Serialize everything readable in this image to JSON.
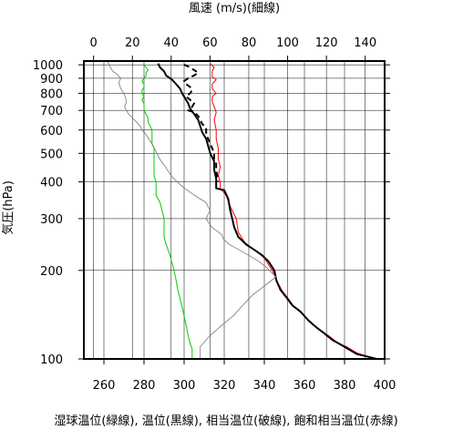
{
  "chart_data": {
    "type": "line",
    "top_axis": {
      "label": "風速 (m/s)(細線)",
      "range": [
        -5,
        150
      ],
      "ticks": [
        0,
        20,
        40,
        60,
        80,
        100,
        120,
        140
      ]
    },
    "bottom_axis": {
      "label": "湿球温位(緑線), 温位(黒線), 相当温位(破線), 飽和相当温位(赤線)",
      "range": [
        250,
        400
      ],
      "ticks": [
        260,
        280,
        300,
        320,
        340,
        360,
        380,
        400
      ]
    },
    "y_axis": {
      "label": "気圧(hPa)",
      "scale": "log",
      "range": [
        1030,
        100
      ],
      "ticks": [
        100,
        200,
        300,
        400,
        500,
        600,
        700,
        800,
        900,
        1000
      ]
    },
    "grid": true,
    "series": [
      {
        "axis": "bottom",
        "color": "#ff0000",
        "style": "solid",
        "width": 1,
        "points": [
          [
            313,
            1010
          ],
          [
            315,
            980
          ],
          [
            314,
            950
          ],
          [
            314,
            910
          ],
          [
            316,
            890
          ],
          [
            314,
            860
          ],
          [
            314,
            830
          ],
          [
            316,
            800
          ],
          [
            314,
            780
          ],
          [
            314,
            750
          ],
          [
            315,
            720
          ],
          [
            316,
            690
          ],
          [
            315,
            650
          ],
          [
            316,
            600
          ],
          [
            316,
            560
          ],
          [
            317,
            520
          ],
          [
            317,
            480
          ],
          [
            318,
            450
          ],
          [
            317,
            420
          ],
          [
            318,
            400
          ],
          [
            318,
            380
          ],
          [
            321,
            360
          ],
          [
            323,
            330
          ],
          [
            326,
            300
          ],
          [
            327,
            270
          ],
          [
            330,
            250
          ],
          [
            333,
            240
          ],
          [
            337,
            230
          ],
          [
            340,
            220
          ],
          [
            344,
            200
          ],
          [
            347,
            180
          ],
          [
            349,
            170
          ],
          [
            352,
            160
          ],
          [
            355,
            150
          ],
          [
            360,
            140
          ],
          [
            365,
            130
          ],
          [
            368,
            125
          ],
          [
            372,
            120
          ],
          [
            377,
            113
          ],
          [
            381,
            110
          ],
          [
            386,
            105
          ],
          [
            391,
            102
          ],
          [
            396,
            100
          ]
        ]
      },
      {
        "axis": "bottom",
        "color": "#000000",
        "style": "solid",
        "width": 2,
        "points": [
          [
            287,
            1010
          ],
          [
            288,
            980
          ],
          [
            290,
            950
          ],
          [
            291,
            920
          ],
          [
            294,
            890
          ],
          [
            296,
            860
          ],
          [
            298,
            830
          ],
          [
            299,
            800
          ],
          [
            300,
            780
          ],
          [
            302,
            740
          ],
          [
            303,
            710
          ],
          [
            305,
            680
          ],
          [
            307,
            650
          ],
          [
            308,
            620
          ],
          [
            309,
            590
          ],
          [
            311,
            560
          ],
          [
            312,
            530
          ],
          [
            313,
            500
          ],
          [
            315,
            470
          ],
          [
            315,
            440
          ],
          [
            316,
            410
          ],
          [
            316,
            380
          ],
          [
            320,
            375
          ],
          [
            322,
            350
          ],
          [
            323,
            320
          ],
          [
            324,
            300
          ],
          [
            325,
            280
          ],
          [
            327,
            260
          ],
          [
            331,
            245
          ],
          [
            335,
            235
          ],
          [
            339,
            225
          ],
          [
            342,
            215
          ],
          [
            345,
            200
          ],
          [
            346,
            185
          ],
          [
            348,
            172
          ],
          [
            351,
            162
          ],
          [
            354,
            152
          ],
          [
            358,
            145
          ],
          [
            362,
            135
          ],
          [
            366,
            128
          ],
          [
            370,
            122
          ],
          [
            374,
            116
          ],
          [
            378,
            112
          ],
          [
            382,
            108
          ],
          [
            386,
            104
          ],
          [
            391,
            102
          ],
          [
            396,
            100
          ]
        ]
      },
      {
        "axis": "bottom",
        "color": "#000000",
        "style": "dashed",
        "width": 2,
        "points": [
          [
            300,
            1000
          ],
          [
            303,
            980
          ],
          [
            305,
            960
          ],
          [
            307,
            940
          ],
          [
            305,
            920
          ],
          [
            302,
            900
          ],
          [
            300,
            880
          ],
          [
            301,
            860
          ],
          [
            303,
            840
          ],
          [
            304,
            820
          ],
          [
            303,
            800
          ],
          [
            301,
            780
          ],
          [
            303,
            760
          ],
          [
            305,
            740
          ],
          [
            304,
            720
          ],
          [
            302,
            700
          ],
          [
            305,
            690
          ],
          [
            307,
            670
          ],
          [
            308,
            650
          ],
          [
            309,
            630
          ],
          [
            311,
            610
          ],
          [
            311,
            580
          ],
          [
            312,
            560
          ],
          [
            313,
            540
          ],
          [
            314,
            520
          ],
          [
            315,
            500
          ],
          [
            315,
            480
          ],
          [
            316,
            460
          ],
          [
            316,
            440
          ],
          [
            317,
            400
          ]
        ]
      },
      {
        "axis": "bottom",
        "color": "#00cc00",
        "style": "solid",
        "width": 1,
        "points": [
          [
            280,
            1000
          ],
          [
            281,
            980
          ],
          [
            282,
            960
          ],
          [
            281,
            940
          ],
          [
            281,
            920
          ],
          [
            280,
            900
          ],
          [
            279,
            880
          ],
          [
            280,
            860
          ],
          [
            280,
            840
          ],
          [
            279,
            820
          ],
          [
            279,
            800
          ],
          [
            280,
            780
          ],
          [
            279,
            760
          ],
          [
            280,
            740
          ],
          [
            280,
            720
          ],
          [
            280,
            700
          ],
          [
            281,
            680
          ],
          [
            282,
            660
          ],
          [
            282,
            640
          ],
          [
            283,
            620
          ],
          [
            284,
            600
          ],
          [
            284,
            580
          ],
          [
            284,
            560
          ],
          [
            284,
            540
          ],
          [
            285,
            520
          ],
          [
            285,
            500
          ],
          [
            285,
            480
          ],
          [
            285,
            460
          ],
          [
            285,
            440
          ],
          [
            285,
            420
          ],
          [
            286,
            400
          ],
          [
            286,
            380
          ],
          [
            286,
            360
          ],
          [
            288,
            340
          ],
          [
            289,
            320
          ],
          [
            290,
            300
          ],
          [
            290,
            280
          ],
          [
            290,
            260
          ],
          [
            291,
            245
          ],
          [
            292,
            235
          ],
          [
            293,
            225
          ],
          [
            294,
            212
          ],
          [
            295,
            200
          ],
          [
            296,
            185
          ],
          [
            297,
            170
          ],
          [
            298,
            160
          ],
          [
            299,
            150
          ],
          [
            300,
            140
          ],
          [
            301,
            130
          ],
          [
            302,
            120
          ],
          [
            303,
            113
          ],
          [
            304,
            108
          ],
          [
            304,
            100
          ]
        ]
      },
      {
        "axis": "top",
        "color": "#777777",
        "style": "solid",
        "width": 0.8,
        "points": [
          [
            7,
            1030
          ],
          [
            8,
            1000
          ],
          [
            9,
            970
          ],
          [
            10,
            950
          ],
          [
            12,
            930
          ],
          [
            14,
            900
          ],
          [
            13,
            870
          ],
          [
            14,
            830
          ],
          [
            16,
            790
          ],
          [
            17,
            750
          ],
          [
            16,
            720
          ],
          [
            17,
            700
          ],
          [
            18,
            680
          ],
          [
            20,
            660
          ],
          [
            22,
            640
          ],
          [
            24,
            620
          ],
          [
            25,
            600
          ],
          [
            27,
            580
          ],
          [
            30,
            540
          ],
          [
            32,
            510
          ],
          [
            34,
            480
          ],
          [
            37,
            450
          ],
          [
            40,
            420
          ],
          [
            43,
            400
          ],
          [
            47,
            380
          ],
          [
            52,
            360
          ],
          [
            58,
            340
          ],
          [
            60,
            320
          ],
          [
            58,
            300
          ],
          [
            61,
            280
          ],
          [
            66,
            265
          ],
          [
            67,
            255
          ],
          [
            70,
            245
          ],
          [
            75,
            235
          ],
          [
            80,
            225
          ],
          [
            85,
            215
          ],
          [
            89,
            205
          ],
          [
            94,
            190
          ],
          [
            82,
            165
          ],
          [
            76,
            150
          ],
          [
            72,
            140
          ],
          [
            66,
            130
          ],
          [
            60,
            120
          ],
          [
            55,
            110
          ],
          [
            55,
            100
          ]
        ]
      }
    ]
  }
}
